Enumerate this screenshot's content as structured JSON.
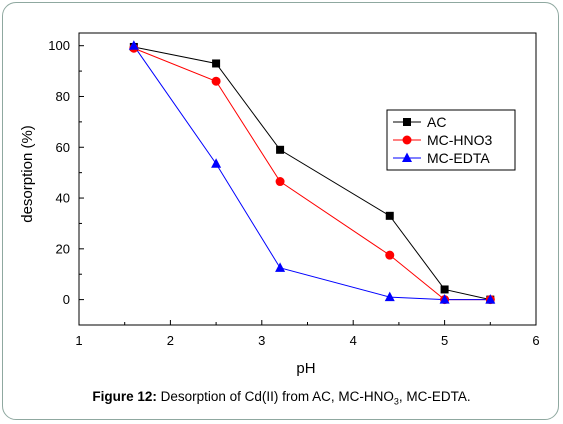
{
  "chart_data": {
    "type": "line",
    "title": "",
    "xlabel": "pH",
    "ylabel": "desorption (%)",
    "xlim": [
      1,
      6
    ],
    "ylim": [
      -10,
      105
    ],
    "xticks": [
      "1",
      "2",
      "3",
      "4",
      "5",
      "6"
    ],
    "yticks": [
      "0",
      "20",
      "40",
      "60",
      "80",
      "100"
    ],
    "grid": false,
    "legend_position": "right",
    "series": [
      {
        "name": "AC",
        "color": "#000000",
        "marker": "square",
        "x": [
          1.6,
          2.5,
          3.2,
          4.4,
          5.0,
          5.5
        ],
        "y": [
          99.5,
          93,
          59,
          33,
          4,
          0
        ]
      },
      {
        "name": "MC-HNO3",
        "color": "#ff0000",
        "marker": "circle",
        "x": [
          1.6,
          2.5,
          3.2,
          4.4,
          5.0,
          5.5
        ],
        "y": [
          99,
          86,
          46.5,
          17.5,
          0,
          0
        ]
      },
      {
        "name": "MC-EDTA",
        "color": "#0000ff",
        "marker": "triangle",
        "x": [
          1.6,
          2.5,
          3.2,
          4.4,
          5.0,
          5.5
        ],
        "y": [
          100,
          53.5,
          12.5,
          1,
          0,
          0
        ]
      }
    ]
  },
  "caption": {
    "label": "Figure 12:",
    "text_main": " Desorption of Cd(II) from AC, MC-HNO",
    "text_sub": "3",
    "text_end": ", MC-EDTA."
  }
}
